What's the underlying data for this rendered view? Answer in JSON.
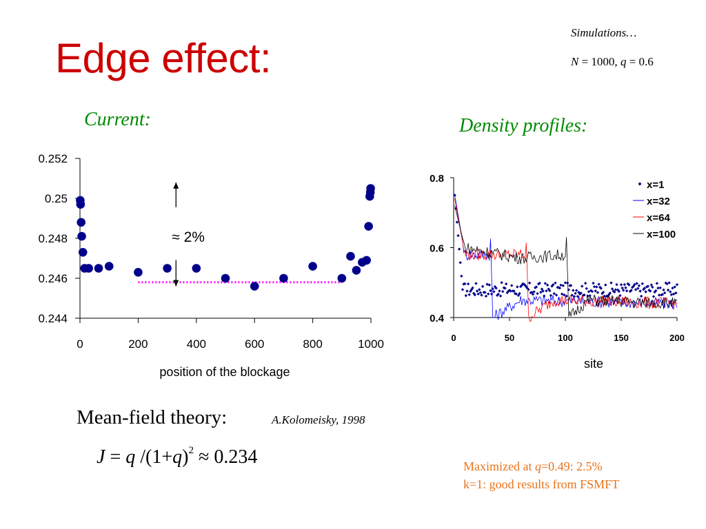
{
  "title": "Edge effect:",
  "simulations": {
    "line1": "Simulations…",
    "n_label": "N",
    "n_value": " = 1000, ",
    "q_label": "q",
    "q_value": " = 0.6"
  },
  "current_label": "Current:",
  "density_label": "Density profiles:",
  "mean_field": {
    "label": "Mean-field theory:",
    "citation": "A.Kolomeisky, 1998",
    "formula_lhs": "J",
    "formula_eq": " = ",
    "formula_q": "q",
    "formula_mid": " /(1+",
    "formula_q2": "q",
    "formula_close": ")",
    "formula_exp": "2",
    "formula_rhs": " ≈ 0.234"
  },
  "notes": {
    "line1_prefix": "Maximized at ",
    "line1_q": "q",
    "line1_rest": "=0.49: 2.5%",
    "line2": "k=1: good results from FSMFT"
  },
  "colors": {
    "title": "#cc0000",
    "green": "#008a00",
    "orange": "#e8731c",
    "navy": "#00008b",
    "magenta": "#ff00ff",
    "blue": "#0000ff",
    "red": "#ff0000",
    "black": "#000000"
  },
  "chart_data": [
    {
      "type": "scatter",
      "title": "Current:",
      "xlabel": "position of the blockage",
      "ylabel": "",
      "xlim": [
        0,
        1000
      ],
      "ylim": [
        0.244,
        0.252
      ],
      "xticks": [
        "0",
        "200",
        "400",
        "600",
        "800",
        "1000"
      ],
      "yticks": [
        "0.244",
        "0.246",
        "0.248",
        "0.25",
        "0.252"
      ],
      "x": [
        1,
        2,
        4,
        6,
        10,
        16,
        30,
        64,
        100,
        200,
        300,
        400,
        500,
        600,
        700,
        800,
        900,
        930,
        950,
        970,
        985,
        992,
        996,
        998,
        999
      ],
      "y": [
        0.2499,
        0.2497,
        0.2488,
        0.2481,
        0.2473,
        0.2465,
        0.2465,
        0.2465,
        0.2466,
        0.2463,
        0.2465,
        0.2465,
        0.246,
        0.2456,
        0.246,
        0.2466,
        0.246,
        0.2471,
        0.2464,
        0.2468,
        0.2469,
        0.2486,
        0.2501,
        0.2503,
        0.2505
      ],
      "reference_line": {
        "x_from": 200,
        "x_to": 900,
        "y": 0.2458
      },
      "annotation": "≈ 2%",
      "annotation_arrow": {
        "x": 330,
        "y_top": 0.2508,
        "y_bottom": 0.2456
      },
      "grid": false
    },
    {
      "type": "line",
      "title": "Density profiles:",
      "xlabel": "site",
      "ylabel": "",
      "xlim": [
        0,
        200
      ],
      "ylim": [
        0.4,
        0.8
      ],
      "xticks": [
        "0",
        "50",
        "100",
        "150",
        "200"
      ],
      "yticks": [
        "0.4",
        "0.6",
        "0.8"
      ],
      "legend_position": "top-right",
      "series": [
        {
          "name": "x=1",
          "color": "#00008b",
          "style": "markers",
          "regimes": [
            [
              1,
              0.75
            ],
            [
              8,
              0.48
            ],
            [
              200,
              0.48
            ]
          ]
        },
        {
          "name": "x=32",
          "color": "#0000ff",
          "style": "line",
          "regimes": [
            [
              1,
              0.75
            ],
            [
              10,
              0.58
            ],
            [
              32,
              0.58
            ],
            [
              33,
              0.62
            ],
            [
              35,
              0.4
            ],
            [
              60,
              0.45
            ],
            [
              200,
              0.44
            ]
          ]
        },
        {
          "name": "x=64",
          "color": "#ff0000",
          "style": "line",
          "regimes": [
            [
              1,
              0.74
            ],
            [
              10,
              0.58
            ],
            [
              64,
              0.58
            ],
            [
              65,
              0.62
            ],
            [
              67,
              0.4
            ],
            [
              90,
              0.45
            ],
            [
              200,
              0.44
            ]
          ]
        },
        {
          "name": "x=100",
          "color": "#000000",
          "style": "line",
          "regimes": [
            [
              1,
              0.72
            ],
            [
              10,
              0.6
            ],
            [
              60,
              0.57
            ],
            [
              100,
              0.58
            ],
            [
              101,
              0.62
            ],
            [
              103,
              0.4
            ],
            [
              120,
              0.45
            ],
            [
              200,
              0.44
            ]
          ]
        }
      ],
      "grid": false
    }
  ]
}
